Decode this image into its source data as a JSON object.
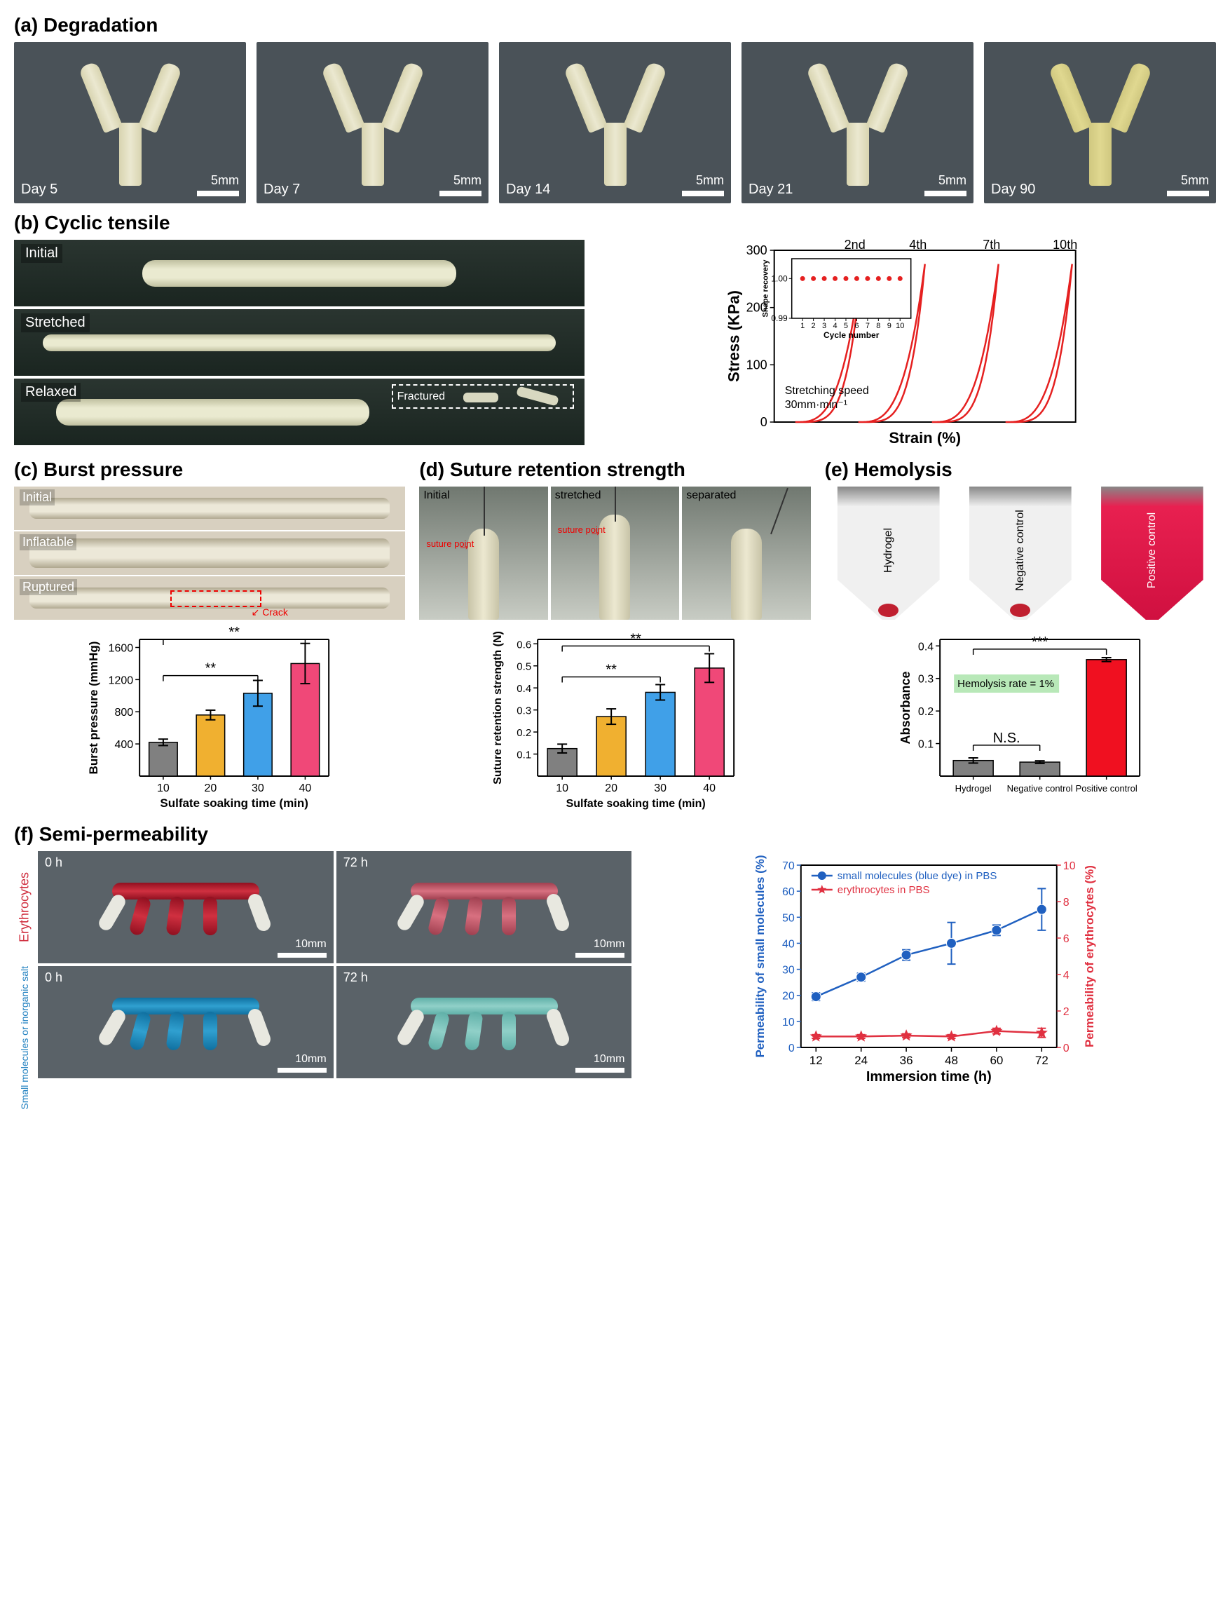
{
  "panelA": {
    "label": "(a) Degradation",
    "items": [
      {
        "day": "Day 5",
        "scale": "5mm"
      },
      {
        "day": "Day 7",
        "scale": "5mm"
      },
      {
        "day": "Day 14",
        "scale": "5mm"
      },
      {
        "day": "Day 21",
        "scale": "5mm"
      },
      {
        "day": "Day 90",
        "scale": "5mm"
      }
    ]
  },
  "panelB": {
    "label": "(b) Cyclic tensile",
    "states": [
      "Initial",
      "Stretched",
      "Relaxed"
    ],
    "fractured_label": "Fractured",
    "chart": {
      "ylabel": "Stress (KPa)",
      "xlabel": "Strain (%)",
      "ylim": [
        0,
        300
      ],
      "ytick_step": 100,
      "cycle_labels": [
        "2nd",
        "4th",
        "7th",
        "10th"
      ],
      "speed_note": "Stretching speed\n30mm·min⁻¹",
      "curve_color": "#e52020",
      "inset": {
        "ylabel": "Shape recovery",
        "xlabel": "Cycle number",
        "ylim": [
          0.99,
          1.005
        ],
        "yticks": [
          0.99,
          1.0
        ],
        "xlim": [
          0,
          11
        ],
        "xticks": [
          1,
          2,
          3,
          4,
          5,
          6,
          7,
          8,
          9,
          10
        ],
        "values": [
          1.0,
          1.0,
          1.0,
          1.0,
          1.0,
          1.0,
          1.0,
          1.0,
          1.0,
          1.0
        ],
        "marker_color": "#e52020"
      }
    }
  },
  "panelC": {
    "label": "(c) Burst pressure",
    "states": [
      "Initial",
      "Inflatable",
      "Ruptured"
    ],
    "crack_label": "Crack",
    "chart": {
      "type": "bar",
      "ylabel": "Burst pressure (mmHg)",
      "xlabel": "Sulfate soaking time (min)",
      "ylim": [
        0,
        1700
      ],
      "yticks": [
        400,
        800,
        1200,
        1600
      ],
      "categories": [
        "10",
        "20",
        "30",
        "40"
      ],
      "values": [
        420,
        760,
        1030,
        1400
      ],
      "errors": [
        40,
        60,
        160,
        250
      ],
      "bar_colors": [
        "#808080",
        "#f0b030",
        "#40a0e8",
        "#f04878"
      ],
      "significance": [
        {
          "from": 0,
          "to": 2,
          "label": "**",
          "y": 1250
        },
        {
          "from": 0,
          "to": 3,
          "label": "**",
          "y": 1700
        }
      ]
    }
  },
  "panelD": {
    "label": "(d) Suture retention strength",
    "states": [
      "Initial",
      "stretched",
      "separated"
    ],
    "suture_point": "suture point",
    "chart": {
      "type": "bar",
      "ylabel": "Suture retention strength (N)",
      "xlabel": "Sulfate soaking time (min)",
      "ylim": [
        0,
        0.62
      ],
      "yticks": [
        0.1,
        0.2,
        0.3,
        0.4,
        0.5,
        0.6
      ],
      "categories": [
        "10",
        "20",
        "30",
        "40"
      ],
      "values": [
        0.125,
        0.27,
        0.38,
        0.49
      ],
      "errors": [
        0.02,
        0.035,
        0.035,
        0.065
      ],
      "bar_colors": [
        "#808080",
        "#f0b030",
        "#40a0e8",
        "#f04878"
      ],
      "significance": [
        {
          "from": 0,
          "to": 2,
          "label": "**",
          "y": 0.45
        },
        {
          "from": 0,
          "to": 3,
          "label": "**",
          "y": 0.59
        }
      ]
    }
  },
  "panelE": {
    "label": "(e) Hemolysis",
    "tubes": [
      "Hydrogel",
      "Negative control",
      "Positive control"
    ],
    "chart": {
      "type": "bar",
      "ylabel": "Absorbance",
      "ylim": [
        0,
        0.42
      ],
      "yticks": [
        0.1,
        0.2,
        0.3,
        0.4
      ],
      "categories": [
        "Hydrogel",
        "Negative control",
        "Positive control"
      ],
      "values": [
        0.048,
        0.043,
        0.358
      ],
      "errors": [
        0.008,
        0.004,
        0.006
      ],
      "bar_colors": [
        "#808080",
        "#808080",
        "#f01020"
      ],
      "hemolysis_note": "Hemolysis rate = 1%",
      "note_bg": "#b8e8b8",
      "significance": [
        {
          "from": 0,
          "to": 1,
          "label": "N.S.",
          "y": 0.095
        },
        {
          "from": 0,
          "to": 2,
          "label": "***",
          "y": 0.39
        }
      ]
    }
  },
  "panelF": {
    "label": "(f) Semi-permeability",
    "row_labels": [
      "Erythrocytes",
      "Small molecules or inorganic salt"
    ],
    "row_label_colors": [
      "#d03040",
      "#2080c0"
    ],
    "times": [
      "0 h",
      "72 h"
    ],
    "scale": "10mm",
    "chart": {
      "type": "line",
      "xlabel": "Immersion time (h)",
      "ylabel_left": "Permeability of small molecules (%)",
      "ylabel_right": "Permeability of erythrocytes (%)",
      "ylabel_left_color": "#2060c0",
      "ylabel_right_color": "#e03040",
      "xlim": [
        8,
        76
      ],
      "xticks": [
        12,
        24,
        36,
        48,
        60,
        72
      ],
      "ylim_left": [
        0,
        70
      ],
      "yticks_left": [
        0,
        10,
        20,
        30,
        40,
        50,
        60,
        70
      ],
      "ylim_right": [
        0,
        10
      ],
      "yticks_right": [
        0,
        2,
        4,
        6,
        8,
        10
      ],
      "series": [
        {
          "name": "small molecules (blue dye) in PBS",
          "color": "#2060c0",
          "marker": "circle",
          "x": [
            12,
            24,
            36,
            48,
            60,
            72
          ],
          "y": [
            19.5,
            27,
            35.5,
            40,
            45,
            53
          ],
          "err": [
            1.5,
            1.5,
            2,
            8,
            2,
            8
          ],
          "axis": "left"
        },
        {
          "name": "erythrocytes in PBS",
          "color": "#e03040",
          "marker": "star",
          "x": [
            12,
            24,
            36,
            48,
            60,
            72
          ],
          "y": [
            0.6,
            0.6,
            0.65,
            0.6,
            0.9,
            0.8
          ],
          "err": [
            0.1,
            0.1,
            0.1,
            0.1,
            0.15,
            0.25
          ],
          "axis": "right"
        }
      ]
    }
  }
}
